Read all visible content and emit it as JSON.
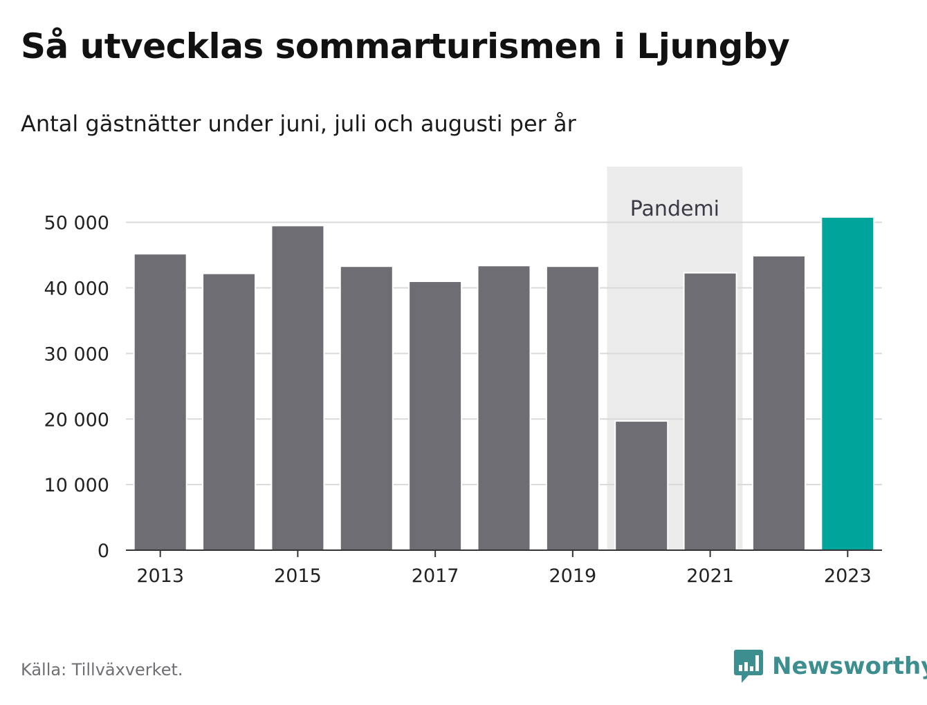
{
  "header": {
    "title": "Så utvecklas sommarturismen i Ljungby",
    "subtitle": "Antal gästnätter under juni, juli och augusti per år"
  },
  "footer": {
    "source": "Källa: Tillväxverket.",
    "brand": "Newsworthy"
  },
  "colors": {
    "bar": "#6e6d73",
    "highlight": "#00a49a",
    "band": "#ebebeb",
    "brand": "#3d8f8f"
  },
  "chart_data": {
    "type": "bar",
    "title": "Så utvecklas sommarturismen i Ljungby",
    "subtitle": "Antal gästnätter under juni, juli och augusti per år",
    "categories": [
      "2013",
      "2014",
      "2015",
      "2016",
      "2017",
      "2018",
      "2019",
      "2020",
      "2021",
      "2022",
      "2023"
    ],
    "values": [
      45200,
      42200,
      49500,
      43300,
      41000,
      43400,
      43300,
      19700,
      42300,
      44900,
      50800
    ],
    "highlight_category": "2023",
    "x_tick_labels": [
      "2013",
      "2015",
      "2017",
      "2019",
      "2021",
      "2023"
    ],
    "y_ticks": [
      0,
      10000,
      20000,
      30000,
      40000,
      50000
    ],
    "y_tick_labels": [
      "0",
      "10 000",
      "20 000",
      "30 000",
      "40 000",
      "50 000"
    ],
    "ylim": [
      0,
      58500
    ],
    "grid": true,
    "annotation": {
      "label": "Pandemi",
      "from": "2020",
      "to": "2021"
    }
  }
}
